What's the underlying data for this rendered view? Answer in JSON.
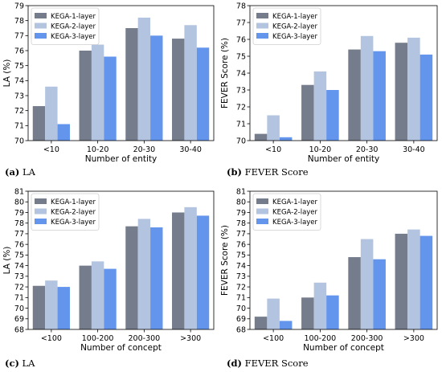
{
  "captions": [
    {
      "letter": "(a)",
      "text": "LA"
    },
    {
      "letter": "(b)",
      "text": "FEVER Score"
    },
    {
      "letter": "(c)",
      "text": "LA"
    },
    {
      "letter": "(d)",
      "text": "FEVER Score"
    }
  ],
  "colors": {
    "KEGA-1-layer": "#757d8c",
    "KEGA-2-layer": "#b3c4e0",
    "KEGA-3-layer": "#6495ed"
  },
  "chart_data": [
    {
      "type": "bar",
      "categories": [
        "<10",
        "10-20",
        "20-30",
        "30-40"
      ],
      "series": [
        {
          "name": "KEGA-1-layer",
          "values": [
            72.3,
            76.0,
            77.5,
            76.8
          ]
        },
        {
          "name": "KEGA-2-layer",
          "values": [
            73.6,
            76.4,
            78.2,
            77.7
          ]
        },
        {
          "name": "KEGA-3-layer",
          "values": [
            71.1,
            75.6,
            77.0,
            76.2
          ]
        }
      ],
      "xlabel": "Number of entity",
      "ylabel": "LA (%)",
      "ylim": [
        70,
        79
      ],
      "yticks": [
        70,
        71,
        72,
        73,
        74,
        75,
        76,
        77,
        78,
        79
      ],
      "legend": "top-left",
      "grid": false
    },
    {
      "type": "bar",
      "categories": [
        "<10",
        "10-20",
        "20-30",
        "30-40"
      ],
      "series": [
        {
          "name": "KEGA-1-layer",
          "values": [
            70.4,
            73.3,
            75.4,
            75.8
          ]
        },
        {
          "name": "KEGA-2-layer",
          "values": [
            71.5,
            74.1,
            76.2,
            76.1
          ]
        },
        {
          "name": "KEGA-3-layer",
          "values": [
            70.2,
            73.0,
            75.3,
            75.1
          ]
        }
      ],
      "xlabel": "Number of entity",
      "ylabel": "FEVER Score (%)",
      "ylim": [
        70,
        78
      ],
      "yticks": [
        70,
        71,
        72,
        73,
        74,
        75,
        76,
        77,
        78
      ],
      "legend": "top-left",
      "grid": false
    },
    {
      "type": "bar",
      "categories": [
        "<100",
        "100-200",
        "200-300",
        ">300"
      ],
      "series": [
        {
          "name": "KEGA-1-layer",
          "values": [
            72.1,
            74.0,
            77.7,
            79.0
          ]
        },
        {
          "name": "KEGA-2-layer",
          "values": [
            72.6,
            74.4,
            78.4,
            79.5
          ]
        },
        {
          "name": "KEGA-3-layer",
          "values": [
            72.0,
            73.7,
            77.6,
            78.7
          ]
        }
      ],
      "xlabel": "Number of concept",
      "ylabel": "LA (%)",
      "ylim": [
        68,
        81
      ],
      "yticks": [
        68,
        69,
        70,
        71,
        72,
        73,
        74,
        75,
        76,
        77,
        78,
        79,
        80,
        81
      ],
      "legend": "top-left",
      "grid": false
    },
    {
      "type": "bar",
      "categories": [
        "<100",
        "100-200",
        "200-300",
        ">300"
      ],
      "series": [
        {
          "name": "KEGA-1-layer",
          "values": [
            69.2,
            71.0,
            74.8,
            77.0
          ]
        },
        {
          "name": "KEGA-2-layer",
          "values": [
            70.9,
            72.4,
            76.5,
            77.4
          ]
        },
        {
          "name": "KEGA-3-layer",
          "values": [
            68.8,
            71.2,
            74.6,
            76.8
          ]
        }
      ],
      "xlabel": "Number of concept",
      "ylabel": "FEVER Score (%)",
      "ylim": [
        68,
        81
      ],
      "yticks": [
        68,
        69,
        70,
        71,
        72,
        73,
        74,
        75,
        76,
        77,
        78,
        79,
        80,
        81
      ],
      "legend": "top-left",
      "grid": false
    }
  ]
}
